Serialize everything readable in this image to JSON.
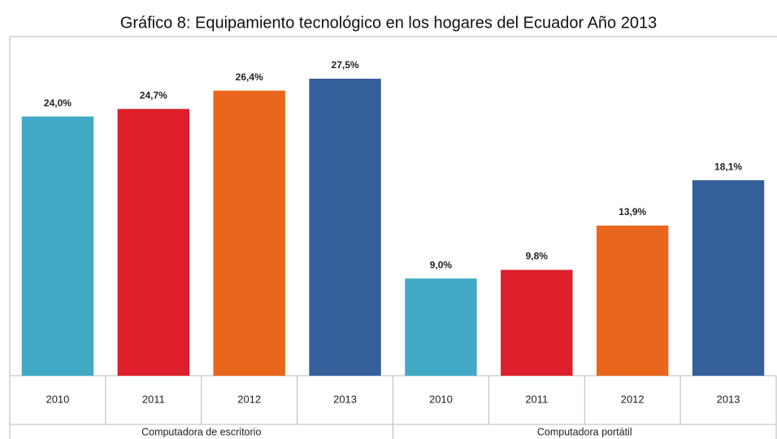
{
  "chart_data": {
    "type": "bar",
    "title": "Gráfico 8: Equipamiento tecnológico en los hogares del Ecuador Año 2013",
    "categories": [
      "2010",
      "2011",
      "2012",
      "2013"
    ],
    "colors": [
      "#41a9c4",
      "#dc1f2b",
      "#e8671c",
      "#355f9b"
    ],
    "series": [
      {
        "name": "Computadora de escritorio",
        "values": [
          24.0,
          24.7,
          26.4,
          27.5
        ],
        "value_labels": [
          "24,0%",
          "24,7%",
          "26,4%",
          "27,5%"
        ]
      },
      {
        "name": "Computadora portátil",
        "values": [
          9.0,
          9.8,
          13.9,
          18.1
        ],
        "value_labels": [
          "9,0%",
          "9,8%",
          "13,9%",
          "18,1%"
        ]
      }
    ]
  }
}
